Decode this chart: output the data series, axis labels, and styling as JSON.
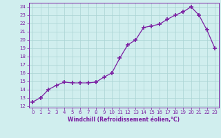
{
  "x": [
    0,
    1,
    2,
    3,
    4,
    5,
    6,
    7,
    8,
    9,
    10,
    11,
    12,
    13,
    14,
    15,
    16,
    17,
    18,
    19,
    20,
    21,
    22,
    23
  ],
  "y": [
    12.5,
    13.0,
    14.0,
    14.5,
    14.9,
    14.8,
    14.8,
    14.8,
    14.9,
    15.5,
    16.0,
    17.8,
    19.4,
    20.0,
    21.5,
    21.7,
    21.9,
    22.5,
    23.0,
    23.4,
    24.0,
    23.0,
    21.2,
    19.0
  ],
  "line_color": "#7b1fa2",
  "marker": "+",
  "markersize": 4,
  "markeredgewidth": 1.2,
  "linewidth": 0.9,
  "xlabel": "Windchill (Refroidissement éolien,°C)",
  "ylabel_ticks": [
    12,
    13,
    14,
    15,
    16,
    17,
    18,
    19,
    20,
    21,
    22,
    23,
    24
  ],
  "xlim": [
    -0.5,
    23.5
  ],
  "ylim": [
    11.8,
    24.5
  ],
  "bg_color": "#d0eeee",
  "grid_color": "#aad4d4",
  "tick_color": "#7b1fa2",
  "label_color": "#7b1fa2",
  "xlabel_fontsize": 5.5,
  "tick_fontsize": 5.0
}
